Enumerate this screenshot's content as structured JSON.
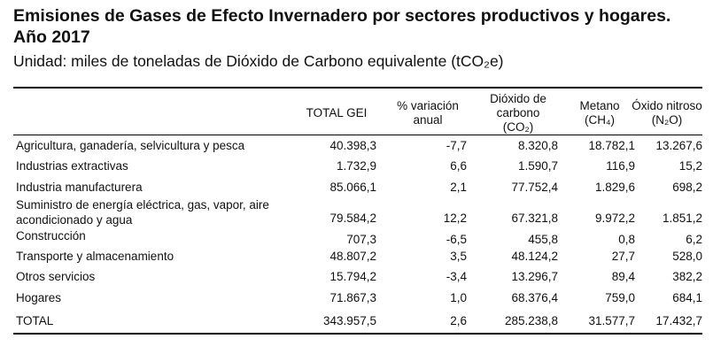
{
  "title": "Emisiones de Gases de Efecto Invernadero por sectores productivos y hogares. Año 2017",
  "subtitle": "Unidad: miles de toneladas de Dióxido de Carbono equivalente (tCO₂e)",
  "columns": [
    {
      "lines": [
        "TOTAL GEI"
      ]
    },
    {
      "lines": [
        "% variación",
        "anual"
      ]
    },
    {
      "lines": [
        "Dióxido de",
        "carbono",
        "(CO₂)"
      ]
    },
    {
      "lines": [
        "Metano",
        "(CH₄)"
      ]
    },
    {
      "lines": [
        "Óxido nitroso",
        "(N₂O)"
      ]
    }
  ],
  "rows": [
    {
      "label": [
        "Agricultura, ganadería, selvicultura y pesca"
      ],
      "values": [
        "40.398,3",
        "-7,7",
        "8.320,8",
        "18.782,1",
        "13.267,6"
      ]
    },
    {
      "label": [
        "Industrias extractivas"
      ],
      "values": [
        "1.732,9",
        "6,6",
        "1.590,7",
        "116,9",
        "15,2"
      ]
    },
    {
      "label": [
        "Industria manufacturera"
      ],
      "values": [
        "85.066,1",
        "2,1",
        "77.752,4",
        "1.829,6",
        "698,2"
      ]
    },
    {
      "label": [
        "Suministro de energía eléctrica, gas, vapor, aire",
        "acondicionado y agua"
      ],
      "values": [
        "79.584,2",
        "12,2",
        "67.321,8",
        "9.972,2",
        "1.851,2"
      ]
    },
    {
      "label": [
        "Construcción"
      ],
      "values": [
        "707,3",
        "-6,5",
        "455,8",
        "0,8",
        "6,2"
      ]
    },
    {
      "label": [
        "Transporte y almacenamiento"
      ],
      "values": [
        "48.807,2",
        "3,5",
        "48.124,2",
        "27,7",
        "528,0"
      ]
    },
    {
      "label": [
        "Otros servicios"
      ],
      "values": [
        "15.794,2",
        "-3,4",
        "13.296,7",
        "89,4",
        "382,2"
      ]
    },
    {
      "label": [
        "Hogares"
      ],
      "values": [
        "71.867,3",
        "1,0",
        "68.376,4",
        "759,0",
        "684,1"
      ]
    },
    {
      "label": [
        "TOTAL"
      ],
      "values": [
        "343.957,5",
        "2,6",
        "285.238,8",
        "31.577,7",
        "17.432,7"
      ]
    }
  ]
}
